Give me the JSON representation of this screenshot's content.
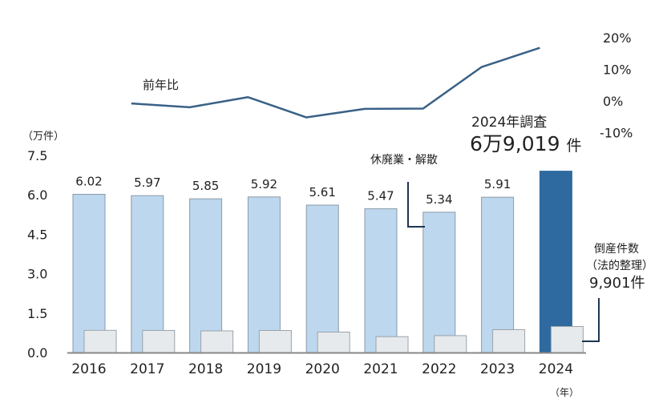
{
  "chart_data": {
    "type": "bar",
    "categories": [
      "2016",
      "2017",
      "2018",
      "2019",
      "2020",
      "2021",
      "2022",
      "2023",
      "2024"
    ],
    "series": [
      {
        "name": "休廃業・解散",
        "values": [
          6.02,
          5.97,
          5.85,
          5.92,
          5.61,
          5.47,
          5.34,
          5.91,
          6.9019
        ],
        "labels": [
          "6.02",
          "5.97",
          "5.85",
          "5.92",
          "5.61",
          "5.47",
          "5.34",
          "5.91",
          ""
        ]
      },
      {
        "name": "倒産件数（法的整理）",
        "values": [
          0.8446,
          0.8405,
          0.8235,
          0.8383,
          0.7773,
          0.603,
          0.6428,
          0.869,
          0.9901
        ]
      },
      {
        "name": "前年比",
        "type": "line",
        "axis": "right",
        "values": [
          -0.8,
          -2.0,
          1.2,
          -5.2,
          -2.5,
          -2.4,
          10.7,
          16.8
        ],
        "x": [
          "2017",
          "2018",
          "2019",
          "2020",
          "2021",
          "2022",
          "2023",
          "2024"
        ]
      }
    ],
    "left_axis": {
      "unit": "（万件）",
      "ticks": [
        "0.0",
        "1.5",
        "3.0",
        "4.5",
        "6.0",
        "7.5"
      ],
      "range": [
        0,
        7.5
      ]
    },
    "right_axis": {
      "ticks": [
        "-10%",
        "0%",
        "10%",
        "20%"
      ],
      "range": [
        -10,
        20
      ]
    },
    "xlabel": "（年）",
    "line_label": "前年比",
    "annotations": {
      "survey_title": "2024年調査",
      "survey_total_num": "6万9,019",
      "survey_total_unit": "件",
      "closure_label": "休廃業・解散",
      "bankruptcy_line1": "倒産件数",
      "bankruptcy_line2": "（法的整理）",
      "bankruptcy_value": "9,901件"
    },
    "colors": {
      "bar": "#bdd7ee",
      "bar_highlight": "#2e6aa0",
      "bankruptcy": "#e7eaed",
      "line": "#3a6187",
      "leader": "#1e3550"
    }
  }
}
